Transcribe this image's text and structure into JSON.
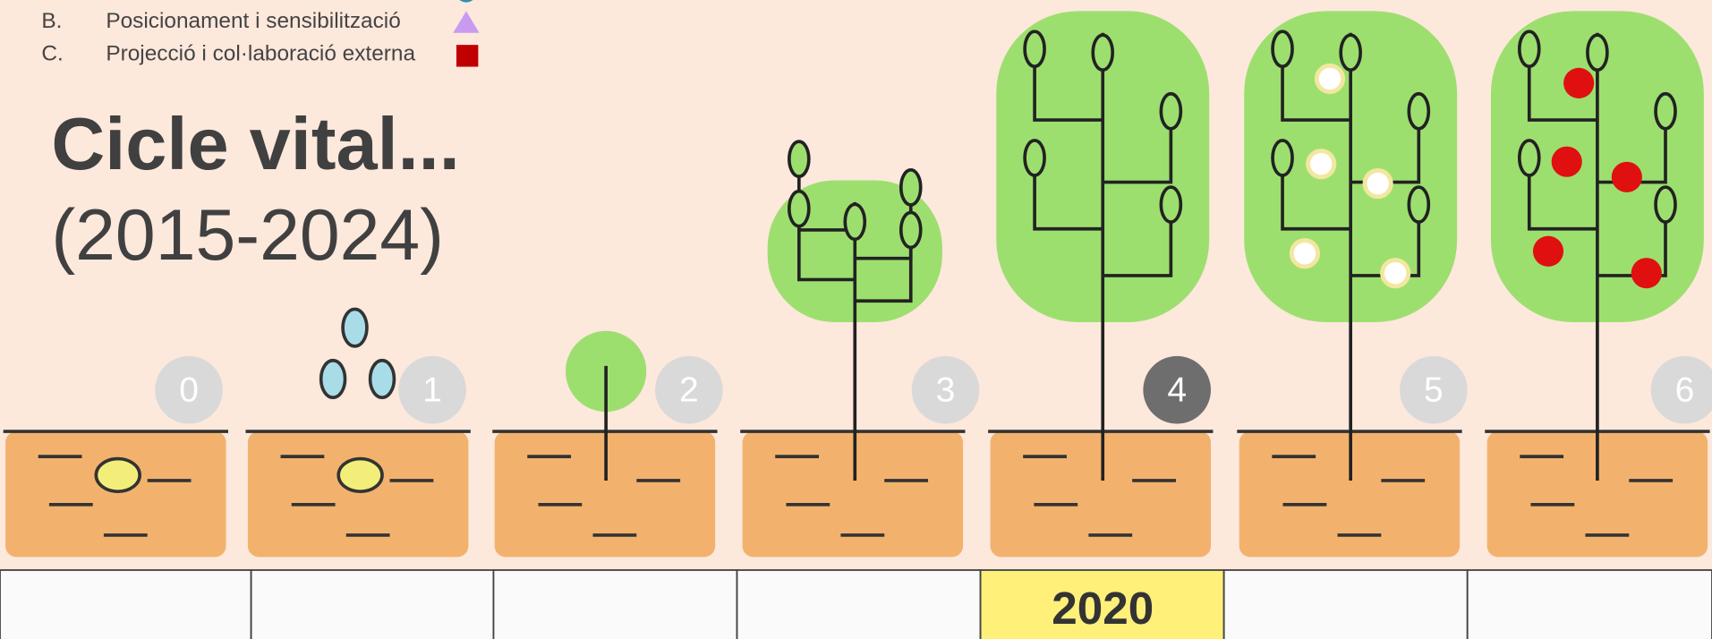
{
  "legend": {
    "items": [
      {
        "letter": "B.",
        "text": "Posicionament i sensibilització"
      },
      {
        "letter": "C.",
        "text": "Projecció i col·laboració externa"
      }
    ]
  },
  "header": {
    "title": "Cicle vital...",
    "subtitle": "(2015-2024)"
  },
  "stages": [
    "0",
    "1",
    "2",
    "3",
    "4",
    "5",
    "6"
  ],
  "table": {
    "highlighted_year": "2020"
  }
}
